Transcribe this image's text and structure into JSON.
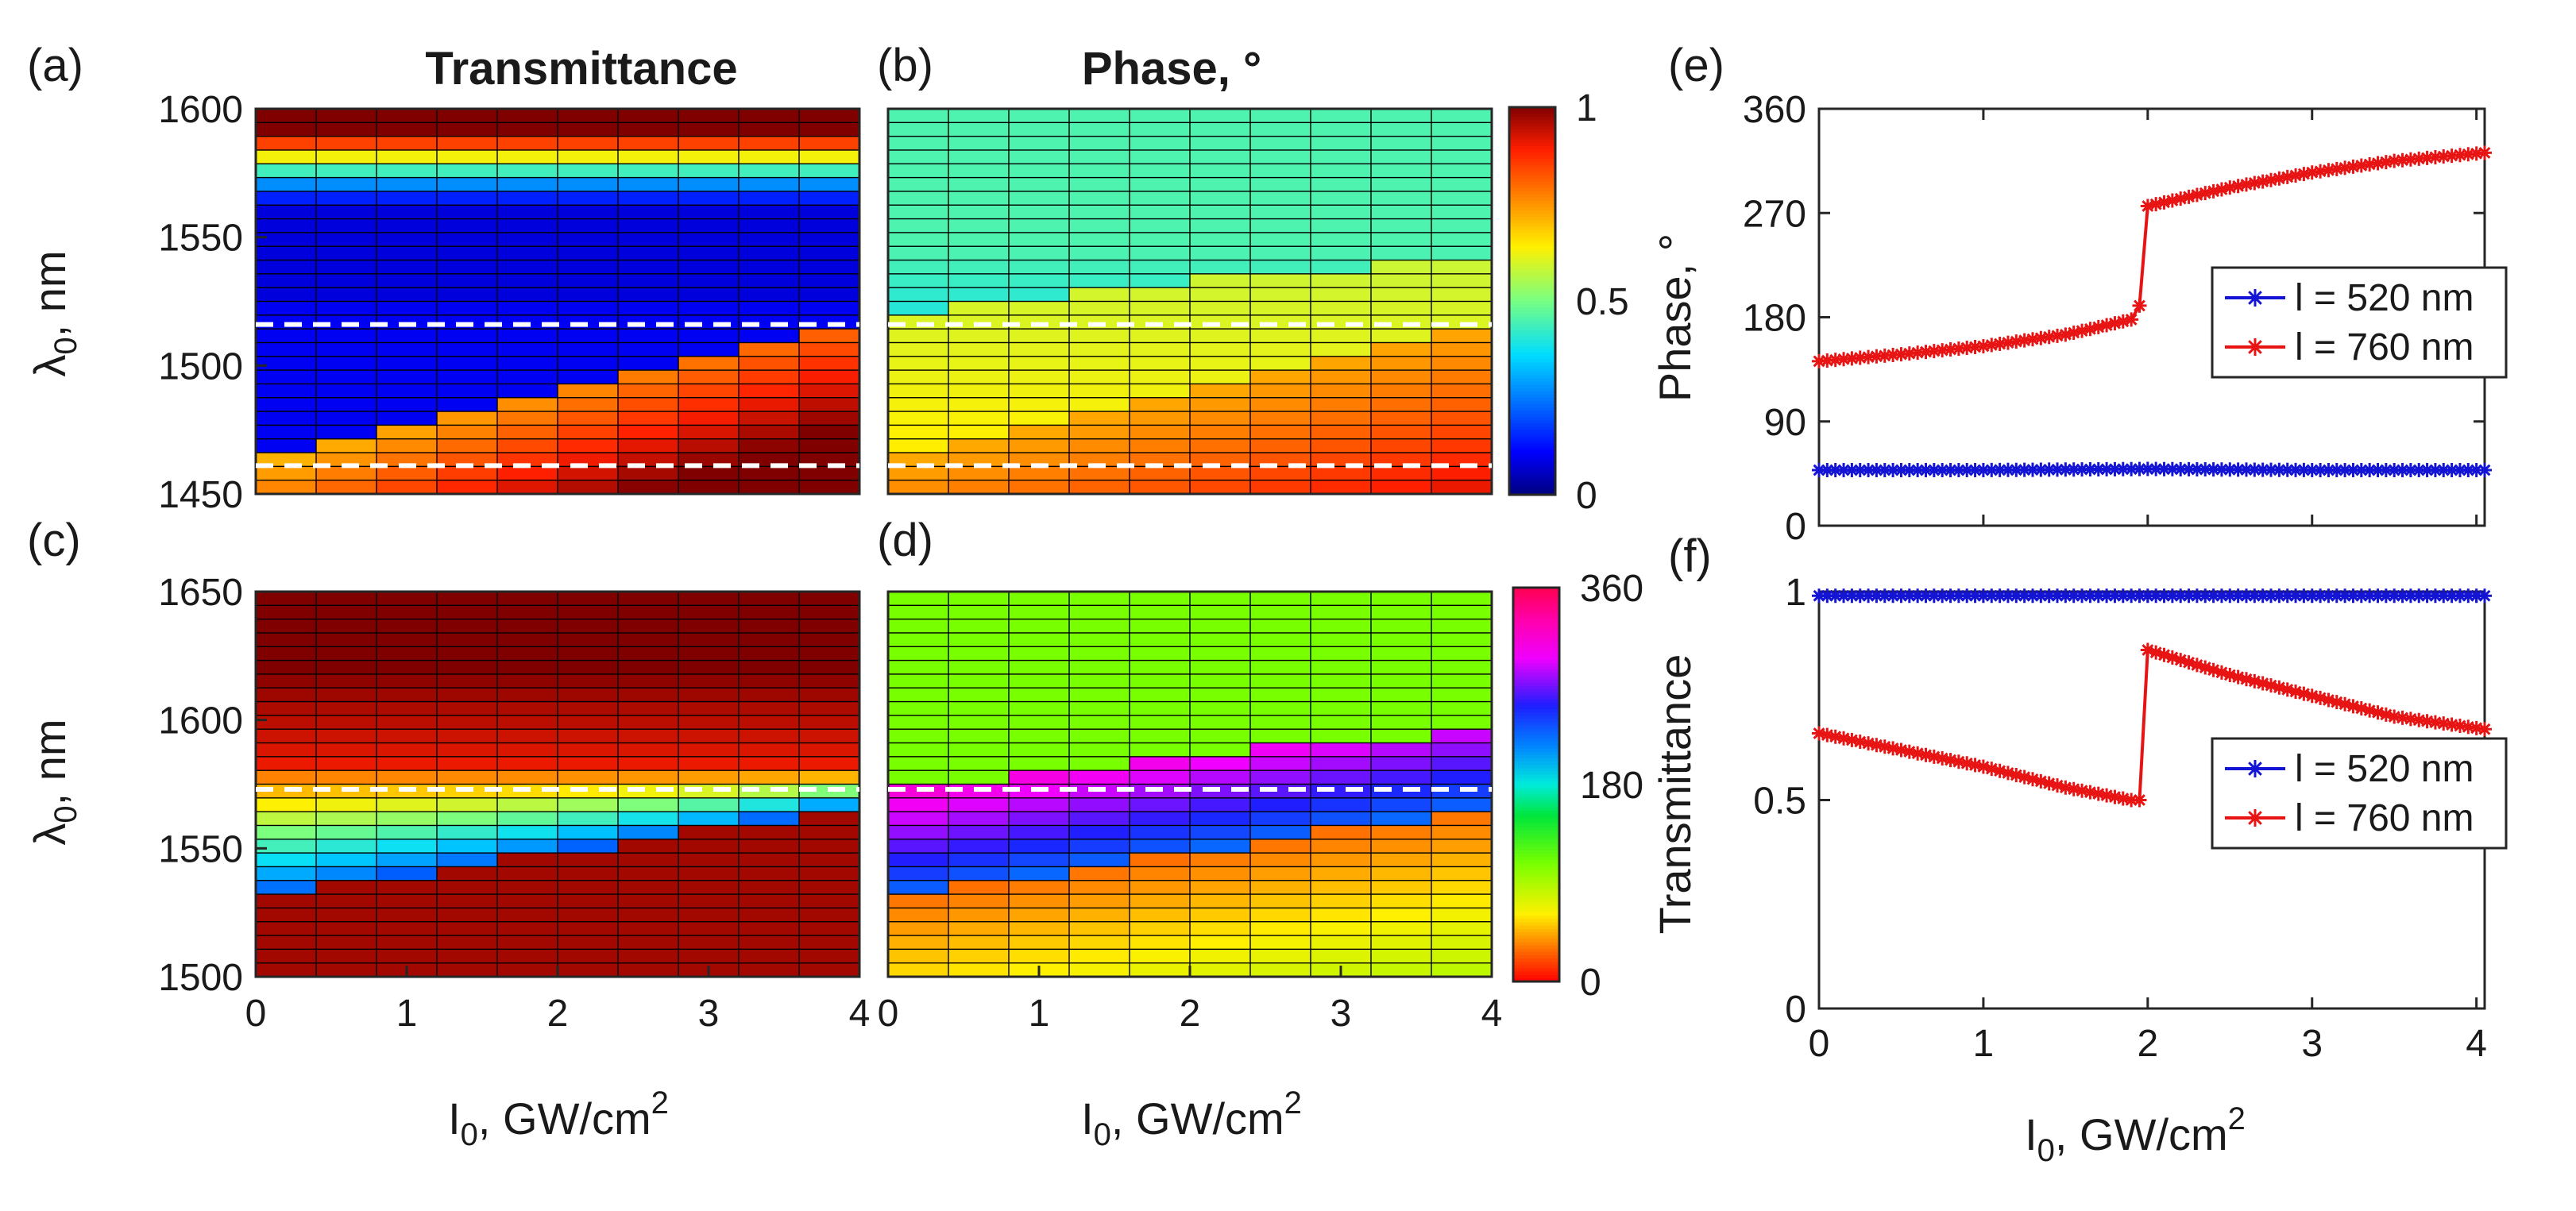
{
  "panel_labels": [
    "(a)",
    "(b)",
    "(c)",
    "(d)",
    "(e)",
    "(f)"
  ],
  "titles": {
    "a": "Transmittance",
    "b": "Phase, °"
  },
  "axis_labels": {
    "lambda_main": "λ",
    "lambda_sub": "0",
    "lambda_unit": ", nm",
    "intensity_main": "I",
    "intensity_sub": "0",
    "intensity_unit": ", GW/cm",
    "intensity_sup": "2",
    "phase_y": "Phase, °",
    "transmittance_y": "Transmittance"
  },
  "colorbars": {
    "transmittance": {
      "ticks": [
        "1",
        "0.5",
        "0"
      ]
    },
    "phase": {
      "ticks": [
        "360",
        "180",
        "0"
      ]
    }
  },
  "legend": {
    "entries": [
      "l = 520 nm",
      "l = 760 nm"
    ],
    "colors": [
      "#1414d4",
      "#e81414"
    ]
  },
  "chart_data": [
    {
      "panel": "a",
      "type": "heatmap",
      "quantity": "transmittance",
      "x_range": [
        0,
        4
      ],
      "y_range": [
        1450,
        1600
      ],
      "x_ticks": [
        "0",
        "1",
        "2",
        "3",
        "4"
      ],
      "y_ticks": [
        "1600",
        "1550",
        "1500",
        "1450"
      ],
      "dashed_lines_nm": [
        1516,
        1461
      ]
    },
    {
      "panel": "b",
      "type": "heatmap",
      "quantity": "phase",
      "x_range": [
        0,
        4
      ],
      "y_range": [
        1450,
        1600
      ],
      "dashed_lines_nm": [
        1516,
        1461
      ]
    },
    {
      "panel": "c",
      "type": "heatmap",
      "quantity": "transmittance",
      "x_range": [
        0,
        4
      ],
      "y_range": [
        1500,
        1650
      ],
      "x_ticks": [
        "0",
        "1",
        "2",
        "3",
        "4"
      ],
      "y_ticks": [
        "1650",
        "1600",
        "1550",
        "1500"
      ],
      "dashed_lines_nm": [
        1573
      ]
    },
    {
      "panel": "d",
      "type": "heatmap",
      "quantity": "phase",
      "x_range": [
        0,
        4
      ],
      "y_range": [
        1500,
        1650
      ],
      "x_ticks": [
        "0",
        "1",
        "2",
        "3",
        "4"
      ],
      "dashed_lines_nm": [
        1573
      ]
    },
    {
      "panel": "e",
      "type": "line",
      "ylabel": "Phase, °",
      "xlim": [
        0,
        4.05
      ],
      "ylim": [
        0,
        360
      ],
      "y_ticks": [
        "360",
        "270",
        "180",
        "90",
        "0"
      ],
      "series": [
        {
          "name": "l = 520 nm",
          "x": [
            0,
            1,
            2,
            3,
            4
          ],
          "y": [
            48,
            48,
            49,
            48,
            48
          ]
        },
        {
          "name": "l = 760 nm",
          "x": [
            0,
            0.5,
            1,
            1.5,
            1.9,
            1.95,
            2.0,
            2.5,
            3,
            3.5,
            4.05
          ],
          "y": [
            142,
            148,
            155,
            165,
            178,
            190,
            276,
            292,
            305,
            315,
            322
          ]
        }
      ]
    },
    {
      "panel": "f",
      "type": "line",
      "ylabel": "Transmittance",
      "xlim": [
        0,
        4.05
      ],
      "ylim": [
        0,
        1
      ],
      "x_ticks": [
        "0",
        "1",
        "2",
        "3",
        "4"
      ],
      "y_ticks": [
        "1",
        "0.5",
        "0"
      ],
      "series": [
        {
          "name": "l = 520 nm",
          "x": [
            0,
            1,
            2,
            3,
            4.05
          ],
          "y": [
            0.99,
            0.99,
            0.99,
            0.99,
            0.99
          ]
        },
        {
          "name": "l = 760 nm",
          "x": [
            0,
            0.5,
            1,
            1.5,
            1.9,
            1.95,
            2.0,
            2.5,
            3,
            3.5,
            4.05
          ],
          "y": [
            0.66,
            0.62,
            0.58,
            0.53,
            0.5,
            0.5,
            0.86,
            0.8,
            0.75,
            0.7,
            0.67
          ]
        }
      ]
    }
  ]
}
